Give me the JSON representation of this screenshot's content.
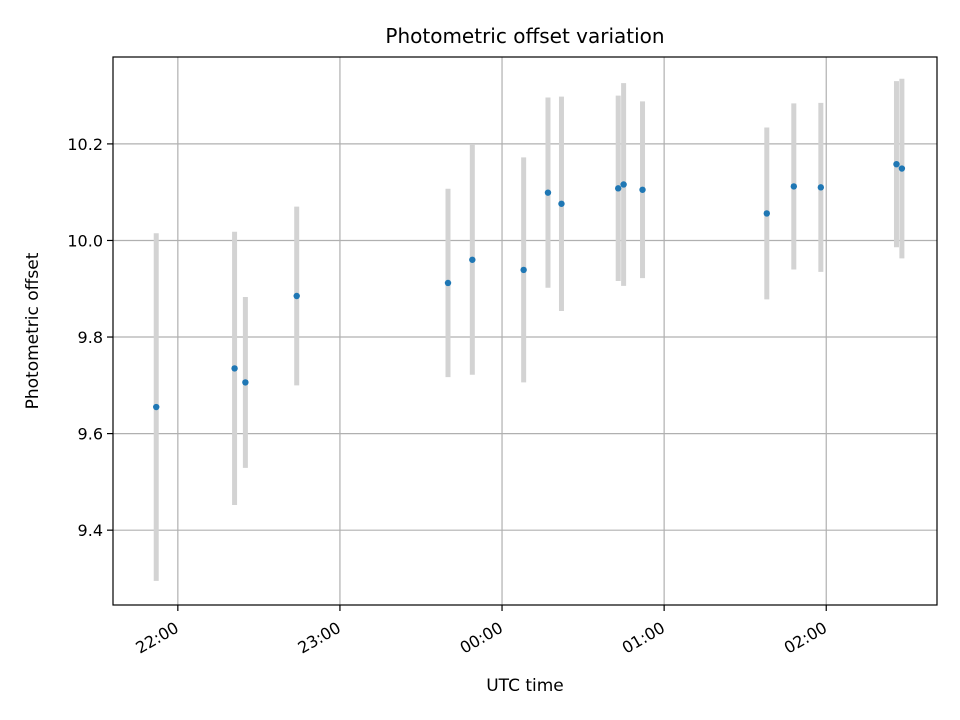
{
  "chart_data": {
    "type": "scatter",
    "title": "Photometric offset variation",
    "xlabel": "UTC time",
    "ylabel": "Photometric offset",
    "x_unit": "UTC time (HH:MM)",
    "xlim": [
      "21:36",
      "02:41"
    ],
    "ylim": [
      9.245,
      10.38
    ],
    "x_ticks": [
      "22:00",
      "23:00",
      "00:00",
      "01:00",
      "02:00"
    ],
    "y_ticks": [
      9.4,
      9.6,
      9.8,
      10.0,
      10.2
    ],
    "grid": true,
    "marker_color": "#1f77b4",
    "errorbar_color": "#d3d3d3",
    "points": [
      {
        "x": "21:52",
        "y": 9.655,
        "err": 0.36
      },
      {
        "x": "22:21",
        "y": 9.735,
        "err": 0.283
      },
      {
        "x": "22:25",
        "y": 9.706,
        "err": 0.177
      },
      {
        "x": "22:44",
        "y": 9.885,
        "err": 0.185
      },
      {
        "x": "23:40",
        "y": 9.912,
        "err": 0.195
      },
      {
        "x": "23:49",
        "y": 9.96,
        "err": 0.238
      },
      {
        "x": "00:08",
        "y": 9.939,
        "err": 0.233
      },
      {
        "x": "00:17",
        "y": 10.099,
        "err": 0.197
      },
      {
        "x": "00:22",
        "y": 10.076,
        "err": 0.222
      },
      {
        "x": "00:43",
        "y": 10.108,
        "err": 0.192
      },
      {
        "x": "00:45",
        "y": 10.116,
        "err": 0.21
      },
      {
        "x": "00:52",
        "y": 10.105,
        "err": 0.183
      },
      {
        "x": "01:38",
        "y": 10.056,
        "err": 0.178
      },
      {
        "x": "01:48",
        "y": 10.112,
        "err": 0.172
      },
      {
        "x": "01:58",
        "y": 10.11,
        "err": 0.175
      },
      {
        "x": "02:26",
        "y": 10.158,
        "err": 0.172
      },
      {
        "x": "02:28",
        "y": 10.149,
        "err": 0.186
      }
    ]
  }
}
